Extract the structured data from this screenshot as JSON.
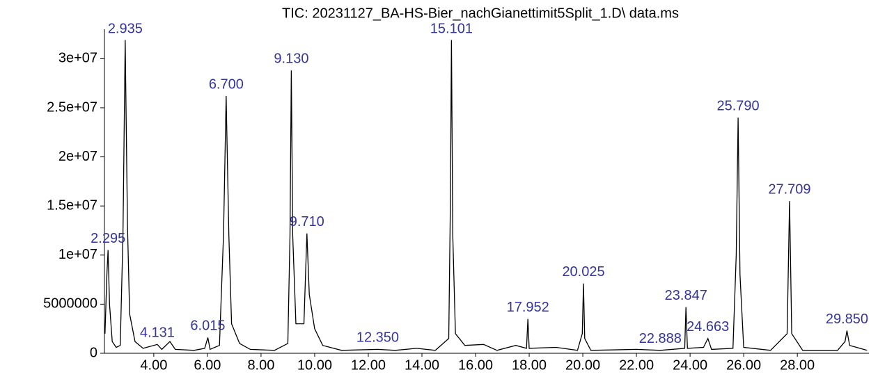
{
  "chart_data": {
    "type": "line",
    "title": "TIC: 20231127_BA-HS-Bier_nachGianettimit5Split_1.D\\ data.ms",
    "xlim": [
      2.16,
      30.67
    ],
    "ylim": [
      0,
      33000000
    ],
    "xticks": [
      {
        "value": 4,
        "label": "4.00"
      },
      {
        "value": 6,
        "label": "6.00"
      },
      {
        "value": 8,
        "label": "8.00"
      },
      {
        "value": 10,
        "label": "10.00"
      },
      {
        "value": 12,
        "label": "12.00"
      },
      {
        "value": 14,
        "label": "14.00"
      },
      {
        "value": 16,
        "label": "16.00"
      },
      {
        "value": 18,
        "label": "18.00"
      },
      {
        "value": 20,
        "label": "20.00"
      },
      {
        "value": 22,
        "label": "22.00"
      },
      {
        "value": 24,
        "label": "24.00"
      },
      {
        "value": 26,
        "label": "26.00"
      },
      {
        "value": 28,
        "label": "28.00"
      }
    ],
    "yticks": [
      0,
      5000000,
      {
        "value": 10000000,
        "label": "1e+07"
      },
      {
        "value": 15000000,
        "label": "1.5e+07"
      },
      {
        "value": 20000000,
        "label": "2e+07"
      },
      {
        "value": 25000000,
        "label": "2.5e+07"
      },
      {
        "value": 30000000,
        "label": "3e+07"
      }
    ],
    "series": [
      {
        "color": "#000000",
        "x": [
          2.18,
          2.25,
          2.295,
          2.35,
          2.45,
          2.6,
          2.75,
          2.85,
          2.935,
          3.02,
          3.1,
          3.3,
          3.6,
          4.131,
          4.3,
          4.6,
          4.8,
          5.5,
          5.9,
          6.015,
          6.1,
          6.45,
          6.6,
          6.7,
          6.8,
          6.9,
          7.2,
          7.6,
          8.5,
          9.0,
          9.08,
          9.13,
          9.18,
          9.3,
          9.6,
          9.71,
          9.8,
          10.0,
          10.3,
          11.0,
          12.35,
          13.0,
          13.8,
          14.5,
          15.0,
          15.06,
          15.101,
          15.15,
          15.25,
          15.6,
          16.3,
          16.8,
          17.5,
          17.9,
          17.952,
          18.0,
          19.0,
          19.8,
          19.98,
          20.025,
          20.07,
          20.3,
          22.0,
          22.888,
          23.8,
          23.847,
          23.9,
          24.5,
          24.663,
          24.8,
          25.6,
          25.72,
          25.79,
          25.86,
          26.0,
          27.0,
          27.62,
          27.709,
          27.79,
          28.2,
          29.5,
          29.78,
          29.85,
          29.95,
          30.6
        ],
        "values": [
          2000000,
          8000000,
          10500000,
          5000000,
          1200000,
          600000,
          800000,
          12000000,
          31900000,
          13000000,
          4000000,
          1200000,
          500000,
          900000,
          400000,
          1200000,
          400000,
          300000,
          500000,
          1600000,
          400000,
          800000,
          12000000,
          26200000,
          12000000,
          3000000,
          1000000,
          400000,
          300000,
          1000000,
          12000000,
          28800000,
          12000000,
          3000000,
          3000000,
          12200000,
          6000000,
          2500000,
          800000,
          300000,
          400000,
          300000,
          500000,
          300000,
          1500000,
          15000000,
          31900000,
          12000000,
          2000000,
          800000,
          900000,
          300000,
          800000,
          500000,
          3500000,
          500000,
          600000,
          300000,
          2000000,
          7100000,
          1500000,
          300000,
          400000,
          300000,
          500000,
          4700000,
          500000,
          600000,
          1500000,
          400000,
          500000,
          10000000,
          24000000,
          8000000,
          600000,
          300000,
          2000000,
          15500000,
          2000000,
          300000,
          300000,
          1200000,
          2300000,
          800000,
          300000
        ]
      }
    ],
    "annotations": [
      {
        "x": 2.295,
        "label": "2.295"
      },
      {
        "x": 2.935,
        "label": "2.935"
      },
      {
        "x": 4.131,
        "label": "4.131"
      },
      {
        "x": 6.015,
        "label": "6.015"
      },
      {
        "x": 6.7,
        "label": "6.700"
      },
      {
        "x": 9.13,
        "label": "9.130"
      },
      {
        "x": 9.71,
        "label": "9.710"
      },
      {
        "x": 12.35,
        "label": "12.350"
      },
      {
        "x": 15.101,
        "label": "15.101"
      },
      {
        "x": 17.952,
        "label": "17.952"
      },
      {
        "x": 20.025,
        "label": "20.025"
      },
      {
        "x": 22.888,
        "label": "22.888"
      },
      {
        "x": 23.847,
        "label": "23.847"
      },
      {
        "x": 24.663,
        "label": "24.663"
      },
      {
        "x": 25.79,
        "label": "25.790"
      },
      {
        "x": 27.709,
        "label": "27.709"
      },
      {
        "x": 29.85,
        "label": "29.850"
      }
    ]
  }
}
